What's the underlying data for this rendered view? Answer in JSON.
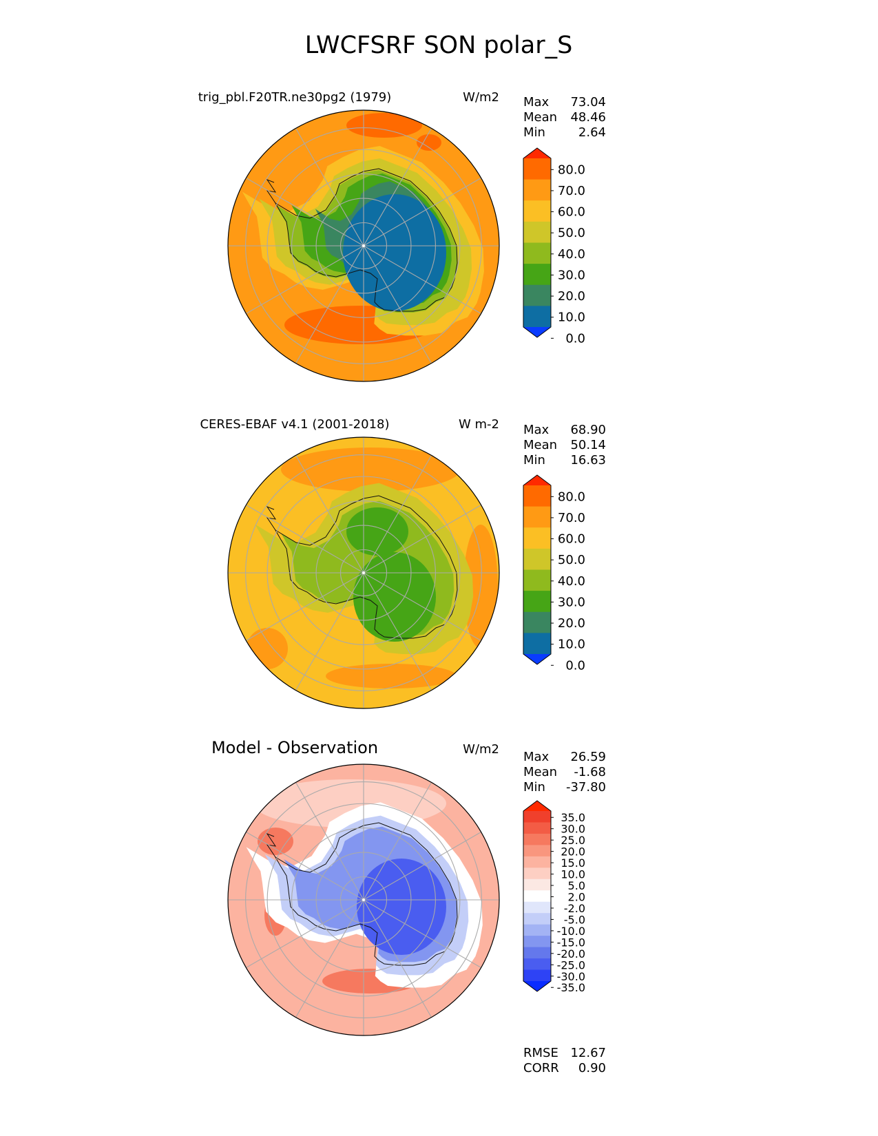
{
  "figure": {
    "title": "LWCFSRF SON polar_S"
  },
  "chart_data": [
    {
      "type": "heatmap",
      "projection": "south-polar-stereographic",
      "title": "trig_pbl.F20TR.ne30pg2 (1979)",
      "units": "W/m2",
      "stats": [
        {
          "label": "Max",
          "value": "73.04"
        },
        {
          "label": "Mean",
          "value": "48.46"
        },
        {
          "label": "Min",
          "value": "2.64"
        }
      ],
      "colorbar": {
        "ticks": [
          "80.0",
          "70.0",
          "60.0",
          "50.0",
          "40.0",
          "30.0",
          "20.0",
          "10.0",
          "0.0"
        ],
        "colors": [
          "#ff2a00",
          "#ff6a00",
          "#ff9a14",
          "#fbbf24",
          "#cfc629",
          "#8fba1e",
          "#46a516",
          "#3a8660",
          "#0e6ea3",
          "#0a3cff"
        ],
        "extend": "both"
      },
      "field_zones": [
        {
          "name": "ocean",
          "approx_value": 62,
          "color": "#ff9a14"
        },
        {
          "name": "sea-ice-edge",
          "approx_value": 55,
          "color": "#fbbf24"
        },
        {
          "name": "coastal-ring",
          "approx_value": 45,
          "color": "#cfc629"
        },
        {
          "name": "west-interior",
          "approx_value": 35,
          "color": "#8fba1e"
        },
        {
          "name": "plateau-edge",
          "approx_value": 25,
          "color": "#46a516"
        },
        {
          "name": "plateau",
          "approx_value": 15,
          "color": "#3a8660"
        },
        {
          "name": "plateau-core",
          "approx_value": 8,
          "color": "#0e6ea3"
        }
      ]
    },
    {
      "type": "heatmap",
      "projection": "south-polar-stereographic",
      "title": "CERES-EBAF v4.1 (2001-2018)",
      "units": "W m-2",
      "stats": [
        {
          "label": "Max",
          "value": "68.90"
        },
        {
          "label": "Mean",
          "value": "50.14"
        },
        {
          "label": "Min",
          "value": "16.63"
        }
      ],
      "colorbar": {
        "ticks": [
          "80.0",
          "70.0",
          "60.0",
          "50.0",
          "40.0",
          "30.0",
          "20.0",
          "10.0",
          "0.0"
        ],
        "colors": [
          "#ff2a00",
          "#ff6a00",
          "#ff9a14",
          "#fbbf24",
          "#cfc629",
          "#8fba1e",
          "#46a516",
          "#3a8660",
          "#0e6ea3",
          "#0a3cff"
        ],
        "extend": "both"
      },
      "field_zones": [
        {
          "name": "ocean",
          "approx_value": 55,
          "color": "#fbbf24"
        },
        {
          "name": "storm-track",
          "approx_value": 62,
          "color": "#ff9a14"
        },
        {
          "name": "coastal-ring",
          "approx_value": 45,
          "color": "#cfc629"
        },
        {
          "name": "interior",
          "approx_value": 35,
          "color": "#8fba1e"
        },
        {
          "name": "east-plateau",
          "approx_value": 28,
          "color": "#46a516"
        }
      ]
    },
    {
      "type": "heatmap",
      "projection": "south-polar-stereographic",
      "title": "Model - Observation",
      "units": "W/m2",
      "stats": [
        {
          "label": "Max",
          "value": "26.59"
        },
        {
          "label": "Mean",
          "value": "-1.68"
        },
        {
          "label": "Min",
          "value": "-37.80"
        }
      ],
      "colorbar": {
        "ticks": [
          "35.0",
          "30.0",
          "25.0",
          "20.0",
          "15.0",
          "10.0",
          "5.0",
          "2.0",
          "-2.0",
          "-5.0",
          "-10.0",
          "-15.0",
          "-20.0",
          "-25.0",
          "-30.0",
          "-35.0"
        ],
        "colors": [
          "#ff2a00",
          "#f0402c",
          "#f35c45",
          "#f6795f",
          "#f9967e",
          "#fcb3a0",
          "#fdcfc3",
          "#fbe8e3",
          "#ffffff",
          "#e0e6fb",
          "#c3cef8",
          "#a3b3f4",
          "#8396f0",
          "#6478ec",
          "#4a5df0",
          "#2e43f5",
          "#0a2cff"
        ],
        "extend": "both"
      },
      "field_zones": [
        {
          "name": "ocean",
          "approx_value": 8,
          "color": "#fcb3a0"
        },
        {
          "name": "ocean-light",
          "approx_value": 3,
          "color": "#fdcfc3"
        },
        {
          "name": "ice-edge",
          "approx_value": 0,
          "color": "#ffffff"
        },
        {
          "name": "coast",
          "approx_value": -8,
          "color": "#c3cef8"
        },
        {
          "name": "interior",
          "approx_value": -18,
          "color": "#8396f0"
        },
        {
          "name": "east-plateau",
          "approx_value": -28,
          "color": "#4a5df0"
        }
      ],
      "metrics": [
        {
          "label": "RMSE",
          "value": "12.67"
        },
        {
          "label": "CORR",
          "value": "0.90"
        }
      ]
    }
  ]
}
